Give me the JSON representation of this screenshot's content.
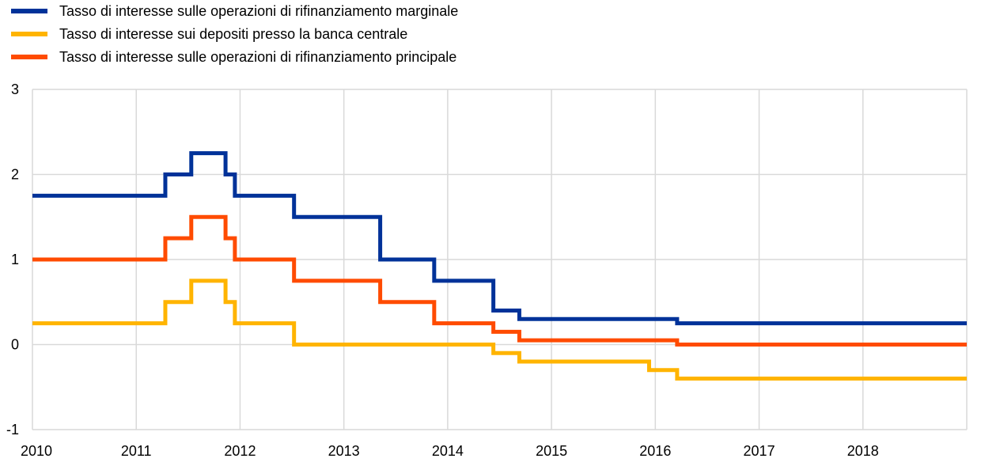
{
  "chart_data": {
    "type": "line",
    "step": true,
    "title": "",
    "xlabel": "",
    "ylabel": "",
    "xlim": [
      2010,
      2019
    ],
    "ylim": [
      -1,
      3
    ],
    "grid": true,
    "legend_position": "top-left",
    "x_ticks": [
      "2010",
      "2011",
      "2012",
      "2013",
      "2014",
      "2015",
      "2016",
      "2017",
      "2018"
    ],
    "y_ticks": [
      "3",
      "2",
      "1",
      "0",
      "-1"
    ],
    "change_dates": [
      2010.0,
      2011.28,
      2011.53,
      2011.86,
      2011.95,
      2012.52,
      2013.35,
      2013.87,
      2014.44,
      2014.69,
      2015.94,
      2016.21
    ],
    "series": [
      {
        "name": "Tasso di interesse sulle operazioni di rifinanziamento marginale",
        "color": "#003299",
        "values": [
          1.75,
          2.0,
          2.25,
          2.0,
          1.75,
          1.5,
          1.0,
          0.75,
          0.4,
          0.3,
          0.3,
          0.25
        ]
      },
      {
        "name": "Tasso di interesse sui depositi presso la banca centrale",
        "color": "#FFB400",
        "values": [
          0.25,
          0.5,
          0.75,
          0.5,
          0.25,
          0.0,
          0.0,
          0.0,
          -0.1,
          -0.2,
          -0.3,
          -0.4
        ]
      },
      {
        "name": "Tasso di interesse sulle operazioni di rifinanziamento principale",
        "color": "#FF4B00",
        "values": [
          1.0,
          1.25,
          1.5,
          1.25,
          1.0,
          0.75,
          0.5,
          0.25,
          0.15,
          0.05,
          0.05,
          0.0
        ]
      }
    ]
  }
}
